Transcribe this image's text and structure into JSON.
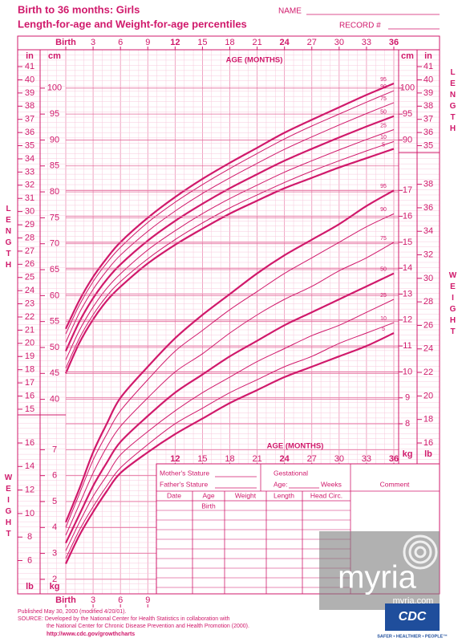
{
  "header": {
    "title": "Birth to 36 months: Girls",
    "subtitle": "Length-for-age and Weight-for-age percentiles",
    "name_label": "NAME",
    "record_label": "RECORD #"
  },
  "chart_data": [
    {
      "type": "line",
      "axis_title": "LENGTH",
      "x_label": "AGE (MONTHS)",
      "x": [
        0,
        1.5,
        3,
        4.5,
        6,
        9,
        12,
        15,
        18,
        21,
        24,
        27,
        30,
        33,
        36
      ],
      "xlim": [
        0,
        36
      ],
      "xticks": [
        {
          "value": 0,
          "label": "Birth"
        },
        3,
        6,
        9,
        12,
        15,
        18,
        21,
        24,
        27,
        30,
        33,
        36
      ],
      "ylabel": "cm",
      "ylim": [
        37,
        107.4
      ],
      "yticks": [
        40,
        45,
        50,
        55,
        60,
        65,
        70,
        75,
        80,
        85,
        90,
        95,
        100
      ],
      "yticks_right": [
        90,
        95,
        100
      ],
      "y2label": "in",
      "y2lim": [
        14.57,
        42.28
      ],
      "y2ticks": [
        15,
        16,
        17,
        18,
        19,
        20,
        21,
        22,
        23,
        24,
        25,
        26,
        27,
        28,
        29,
        30,
        31,
        32,
        33,
        34,
        35,
        36,
        37,
        38,
        39,
        40,
        41
      ],
      "y2ticks_right": [
        35,
        36,
        37,
        38,
        39,
        40,
        41
      ],
      "series": [
        {
          "name": "5",
          "color": "#d0196b",
          "values": [
            45.0,
            50.9,
            55.4,
            59.0,
            61.7,
            66.2,
            69.8,
            72.9,
            75.8,
            78.3,
            80.7,
            82.7,
            84.7,
            86.5,
            88.3
          ]
        },
        {
          "name": "10",
          "color": "#d0196b",
          "values": [
            46.0,
            51.8,
            56.3,
            59.9,
            62.7,
            67.1,
            70.8,
            74.0,
            76.9,
            79.4,
            81.8,
            84.0,
            86.0,
            87.9,
            89.7
          ]
        },
        {
          "name": "25",
          "color": "#d0196b",
          "values": [
            47.6,
            53.3,
            57.8,
            61.4,
            64.2,
            68.8,
            72.5,
            75.8,
            78.7,
            81.3,
            83.8,
            86.0,
            88.1,
            90.1,
            92.0
          ]
        },
        {
          "name": "50",
          "color": "#d0196b",
          "values": [
            49.3,
            55.0,
            59.5,
            63.1,
            66.0,
            70.6,
            74.4,
            77.7,
            80.7,
            83.4,
            86.0,
            88.3,
            90.5,
            92.6,
            94.6
          ]
        },
        {
          "name": "75",
          "color": "#d0196b",
          "values": [
            51.0,
            56.7,
            61.2,
            64.8,
            67.8,
            72.4,
            76.3,
            79.7,
            82.7,
            85.5,
            88.2,
            90.6,
            92.9,
            95.1,
            97.2
          ]
        },
        {
          "name": "90",
          "color": "#d0196b",
          "values": [
            52.6,
            58.2,
            62.7,
            66.3,
            69.3,
            74.1,
            78.0,
            81.4,
            84.5,
            87.4,
            90.2,
            92.7,
            95.0,
            97.3,
            99.5
          ]
        },
        {
          "name": "95",
          "color": "#d0196b",
          "values": [
            53.6,
            59.1,
            63.6,
            67.2,
            70.3,
            75.0,
            79.0,
            82.5,
            85.6,
            88.5,
            91.4,
            93.9,
            96.3,
            98.7,
            100.9
          ]
        }
      ]
    },
    {
      "type": "line",
      "axis_title": "WEIGHT",
      "x_label": "AGE (MONTHS)",
      "x": [
        0,
        1.5,
        3,
        4.5,
        6,
        9,
        12,
        15,
        18,
        21,
        24,
        27,
        30,
        33,
        36
      ],
      "xlim": [
        0,
        36
      ],
      "xticks": [
        {
          "value": 0,
          "label": "Birth"
        },
        3,
        6,
        9,
        12,
        15,
        18,
        21,
        24,
        27,
        30,
        33,
        36
      ],
      "ylabel": "kg",
      "ylim": [
        1.44,
        18
      ],
      "yticks": [
        8,
        9,
        10,
        11,
        12,
        13,
        14,
        15,
        16,
        17
      ],
      "yticks_left": [
        2,
        3,
        4,
        5,
        6,
        7
      ],
      "y2label": "lb",
      "y2lim": [
        3.17,
        39.68
      ],
      "y2ticks": [
        16,
        18,
        20,
        22,
        24,
        26,
        28,
        30,
        32,
        34,
        36,
        38
      ],
      "y2ticks_left": [
        6,
        8,
        10,
        12,
        14,
        16
      ],
      "series": [
        {
          "name": "5",
          "color": "#d0196b",
          "values": [
            2.6,
            3.7,
            4.6,
            5.4,
            6.1,
            6.9,
            7.6,
            8.2,
            8.8,
            9.3,
            9.8,
            10.2,
            10.6,
            11.0,
            11.5
          ]
        },
        {
          "name": "10",
          "color": "#d0196b",
          "values": [
            2.8,
            3.9,
            4.8,
            5.6,
            6.3,
            7.2,
            8.0,
            8.6,
            9.2,
            9.7,
            10.2,
            10.6,
            11.1,
            11.5,
            11.9
          ]
        },
        {
          "name": "25",
          "color": "#d0196b",
          "values": [
            3.1,
            4.2,
            5.2,
            6.0,
            6.8,
            7.7,
            8.5,
            9.2,
            9.8,
            10.4,
            10.9,
            11.4,
            11.8,
            12.3,
            12.8
          ]
        },
        {
          "name": "50",
          "color": "#d0196b",
          "values": [
            3.4,
            4.5,
            5.6,
            6.5,
            7.3,
            8.3,
            9.2,
            9.9,
            10.6,
            11.2,
            11.8,
            12.3,
            12.8,
            13.3,
            13.8
          ]
        },
        {
          "name": "75",
          "color": "#d0196b",
          "values": [
            3.7,
            4.9,
            6.1,
            7.1,
            7.9,
            9.0,
            10.0,
            10.7,
            11.5,
            12.2,
            12.8,
            13.3,
            13.9,
            14.4,
            15.0
          ]
        },
        {
          "name": "90",
          "color": "#d0196b",
          "values": [
            4.0,
            5.3,
            6.6,
            7.6,
            8.5,
            9.7,
            10.8,
            11.6,
            12.4,
            13.1,
            13.8,
            14.4,
            15.0,
            15.6,
            16.1
          ]
        },
        {
          "name": "95",
          "color": "#d0196b",
          "values": [
            4.2,
            5.5,
            6.9,
            8.0,
            9.0,
            10.2,
            11.3,
            12.2,
            13.0,
            13.8,
            14.5,
            15.1,
            15.7,
            16.4,
            17.0
          ]
        }
      ]
    }
  ],
  "form": {
    "mothers_stature": "Mother's Stature",
    "fathers_stature": "Father's Stature",
    "gestational": "Gestational",
    "gestational_age": "Age:",
    "weeks": "Weeks",
    "comment": "Comment",
    "columns": [
      "Date",
      "Age",
      "Weight",
      "Length",
      "Head Circ."
    ],
    "first_row_age": "Birth"
  },
  "footer": {
    "published": "Published May 30, 2000 (modified 4/20/01).",
    "source_1": "SOURCE: Developed by the National Center for Health Statistics in collaboration with",
    "source_2": "the National Center for Chronic Disease Prevention and Health Promotion (2000).",
    "url": "http://www.cdc.gov/growthcharts",
    "logo": "CDC",
    "slogan": "SAFER • HEALTHIER • PEOPLE™"
  },
  "watermark": {
    "brand": "myria",
    "site": "myria.com"
  }
}
